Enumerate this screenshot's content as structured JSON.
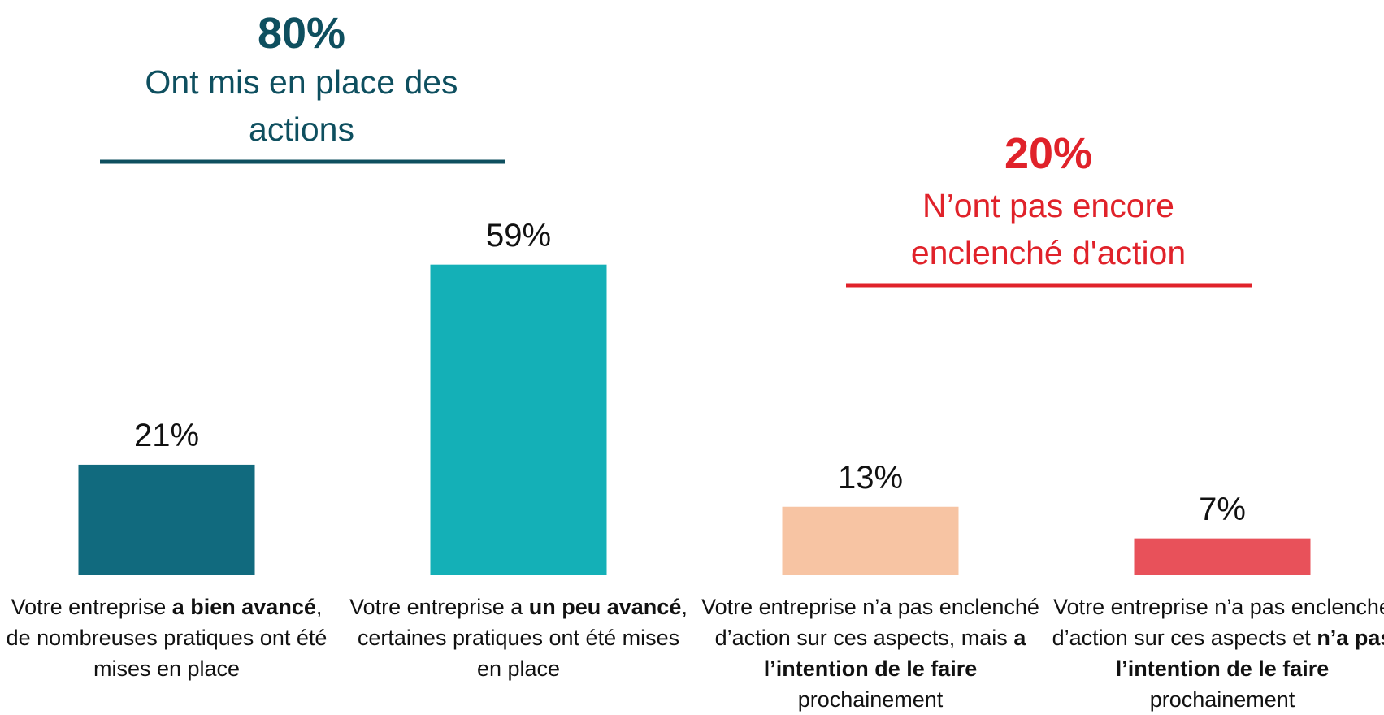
{
  "chart_data": {
    "type": "bar",
    "groups": [
      {
        "value": 80,
        "value_label": "80%",
        "label": "Ont mis en place des actions",
        "color": "#0e4f5f"
      },
      {
        "value": 20,
        "value_label": "20%",
        "label": "N’ont pas encore enclenché d'action",
        "color": "#e0222a"
      }
    ],
    "categories": [
      [
        {
          "text": "Votre entreprise ",
          "bold": false
        },
        {
          "text": "a bien avancé",
          "bold": true
        },
        {
          "text": ", de nombreuses pratiques ont été mises en place",
          "bold": false
        }
      ],
      [
        {
          "text": "Votre entreprise a ",
          "bold": false
        },
        {
          "text": "un peu avancé",
          "bold": true
        },
        {
          "text": ", certaines pratiques ont été mises en place",
          "bold": false
        }
      ],
      [
        {
          "text": "Votre entreprise n’a pas enclenché d’action sur ces aspects, mais ",
          "bold": false
        },
        {
          "text": "a l’intention de le faire",
          "bold": true
        },
        {
          "text": " prochainement",
          "bold": false
        }
      ],
      [
        {
          "text": "Votre entreprise n’a pas enclenché d’action sur ces aspects et ",
          "bold": false
        },
        {
          "text": "n’a pas l’intention de le faire",
          "bold": true
        },
        {
          "text": " prochainement",
          "bold": false
        }
      ]
    ],
    "values": [
      21,
      59,
      13,
      7
    ],
    "value_labels": [
      "21%",
      "59%",
      "13%",
      "7%"
    ],
    "colors": [
      "#116a7e",
      "#14b0b7",
      "#f7c4a3",
      "#e8515a"
    ],
    "ylim": [
      0,
      100
    ]
  }
}
